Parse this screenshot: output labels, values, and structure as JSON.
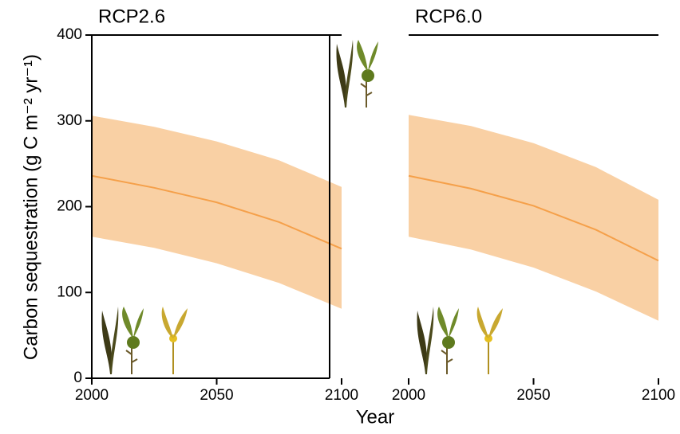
{
  "chart_data": [
    {
      "type": "line",
      "title": "RCP2.6",
      "y_label": "Carbon sequestration (g C m⁻² yr⁻¹)",
      "x_label": "Year",
      "x": [
        2000,
        2025,
        2050,
        2075,
        2100
      ],
      "values": [
        236,
        222,
        205,
        182,
        151
      ],
      "upper": [
        306,
        293,
        276,
        254,
        223
      ],
      "lower": [
        165,
        152,
        134,
        111,
        81
      ],
      "color": "#f5a04a",
      "band_color": "#f9d0a4",
      "xlim": [
        2000,
        2100
      ],
      "ylim": [
        0,
        400
      ],
      "xticks": [
        2000,
        2050,
        2100
      ],
      "yticks": [
        0,
        100,
        200,
        300,
        400
      ]
    },
    {
      "type": "line",
      "title": "RCP6.0",
      "x": [
        2000,
        2025,
        2050,
        2075,
        2100
      ],
      "values": [
        236,
        221,
        201,
        173,
        137
      ],
      "upper": [
        307,
        294,
        274,
        246,
        208
      ],
      "lower": [
        165,
        150,
        129,
        101,
        67
      ],
      "color": "#f5a04a",
      "band_color": "#f9d0a4",
      "xlim": [
        2000,
        2100
      ],
      "ylim": [
        0,
        400
      ],
      "xticks": [
        2000,
        2050,
        2100
      ]
    }
  ]
}
